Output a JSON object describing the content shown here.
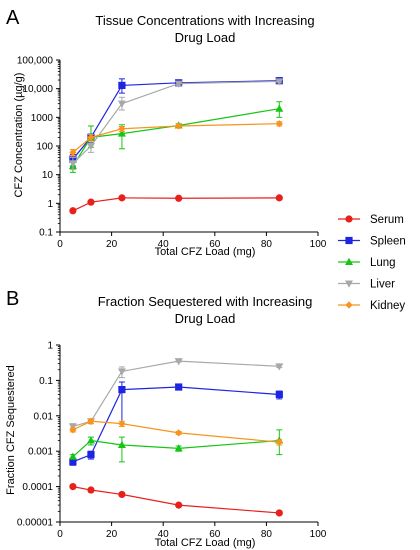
{
  "chart_data": [
    {
      "type": "line",
      "panel_label": "A",
      "title_lines": [
        "Tissue Concentrations with Increasing",
        "Drug Load"
      ],
      "xlabel": "Total CFZ Load (mg)",
      "ylabel": "CFZ Concentration (µg/g)",
      "xlim": [
        0,
        100
      ],
      "ylim": [
        0.1,
        100000
      ],
      "yscale": "log",
      "xticks": [
        0,
        20,
        40,
        60,
        80,
        100
      ],
      "xtick_labels": [
        "0",
        "20",
        "40",
        "60",
        "80",
        "100"
      ],
      "yticks": [
        0.1,
        1,
        10,
        100,
        1000,
        10000,
        100000
      ],
      "ytick_labels": [
        "0.1",
        "1",
        "10",
        "100",
        "1000",
        "10,000",
        "100,000"
      ],
      "grid": false,
      "x": [
        5,
        12,
        24,
        46,
        85
      ],
      "series": [
        {
          "name": "Serum",
          "color": "#e8201c",
          "marker": "circle",
          "values": [
            0.55,
            1.1,
            1.55,
            1.5,
            1.55
          ],
          "err": [
            0,
            0,
            0,
            0,
            0
          ]
        },
        {
          "name": "Spleen",
          "color": "#1d25e0",
          "marker": "square",
          "values": [
            35,
            200,
            13000,
            16000,
            19000
          ],
          "err_low": [
            20,
            130,
            7000,
            14000,
            15000
          ],
          "err_high": [
            50,
            260,
            22000,
            18500,
            21000
          ]
        },
        {
          "name": "Lung",
          "color": "#15c614",
          "marker": "triangle-up",
          "values": [
            20,
            200,
            270,
            520,
            2000
          ],
          "err_low": [
            12,
            90,
            80,
            450,
            1000
          ],
          "err_high": [
            30,
            500,
            550,
            600,
            3500
          ]
        },
        {
          "name": "Liver",
          "color": "#a8a8a8",
          "marker": "triangle-down",
          "values": [
            25,
            100,
            3000,
            15000,
            18000
          ],
          "err_low": [
            15,
            60,
            1800,
            13000,
            16000
          ],
          "err_high": [
            40,
            150,
            5000,
            17000,
            20000
          ]
        },
        {
          "name": "Kidney",
          "color": "#f7941d",
          "marker": "diamond",
          "values": [
            60,
            200,
            400,
            500,
            600
          ],
          "err_low": [
            45,
            150,
            320,
            420,
            500
          ],
          "err_high": [
            75,
            250,
            480,
            580,
            700
          ]
        }
      ]
    },
    {
      "type": "line",
      "panel_label": "B",
      "title_lines": [
        "Fraction Sequestered with Increasing",
        "Drug Load"
      ],
      "xlabel": "Total CFZ Load (mg)",
      "ylabel": "Fraction CFZ Sequestered",
      "xlim": [
        0,
        100
      ],
      "ylim": [
        1e-05,
        1
      ],
      "yscale": "log",
      "xticks": [
        0,
        20,
        40,
        60,
        80,
        100
      ],
      "xtick_labels": [
        "0",
        "20",
        "40",
        "60",
        "80",
        "100"
      ],
      "yticks": [
        1e-05,
        0.0001,
        0.001,
        0.01,
        0.1,
        1
      ],
      "ytick_labels": [
        "0.00001",
        "0.0001",
        "0.001",
        "0.01",
        "0.1",
        "1"
      ],
      "grid": false,
      "x": [
        5,
        12,
        24,
        46,
        85
      ],
      "series": [
        {
          "name": "Serum",
          "color": "#e8201c",
          "marker": "circle",
          "values": [
            0.0001,
            8e-05,
            6e-05,
            3e-05,
            1.8e-05
          ],
          "err_low": [
            0.0001,
            8e-05,
            6e-05,
            3e-05,
            1.8e-05
          ],
          "err_high": [
            0.0001,
            8e-05,
            6e-05,
            3e-05,
            1.8e-05
          ]
        },
        {
          "name": "Spleen",
          "color": "#1d25e0",
          "marker": "square",
          "values": [
            0.0005,
            0.0008,
            0.055,
            0.065,
            0.04
          ],
          "err_low": [
            0.0004,
            0.0006,
            0.006,
            0.055,
            0.03
          ],
          "err_high": [
            0.0006,
            0.001,
            0.09,
            0.075,
            0.05
          ]
        },
        {
          "name": "Lung",
          "color": "#15c614",
          "marker": "triangle-up",
          "values": [
            0.0007,
            0.002,
            0.0015,
            0.0012,
            0.002
          ],
          "err_low": [
            0.0006,
            0.0015,
            0.0005,
            0.001,
            0.0008
          ],
          "err_high": [
            0.0008,
            0.0025,
            0.0025,
            0.0014,
            0.004
          ]
        },
        {
          "name": "Liver",
          "color": "#a8a8a8",
          "marker": "triangle-down",
          "values": [
            0.005,
            0.007,
            0.18,
            0.35,
            0.25
          ],
          "err_low": [
            0.004,
            0.006,
            0.12,
            0.33,
            0.23
          ],
          "err_high": [
            0.006,
            0.008,
            0.24,
            0.37,
            0.27
          ]
        },
        {
          "name": "Kidney",
          "color": "#f7941d",
          "marker": "diamond",
          "values": [
            0.004,
            0.007,
            0.006,
            0.0033,
            0.0018
          ],
          "err_low": [
            0.0035,
            0.006,
            0.005,
            0.003,
            0.0015
          ],
          "err_high": [
            0.0045,
            0.008,
            0.007,
            0.0036,
            0.0021
          ]
        }
      ]
    }
  ],
  "legend": {
    "placement": "right-middle",
    "items": [
      {
        "name": "Serum",
        "color": "#e8201c",
        "marker": "circle"
      },
      {
        "name": "Spleen",
        "color": "#1d25e0",
        "marker": "square"
      },
      {
        "name": "Lung",
        "color": "#15c614",
        "marker": "triangle-up"
      },
      {
        "name": "Liver",
        "color": "#a8a8a8",
        "marker": "triangle-down"
      },
      {
        "name": "Kidney",
        "color": "#f7941d",
        "marker": "diamond"
      }
    ]
  }
}
